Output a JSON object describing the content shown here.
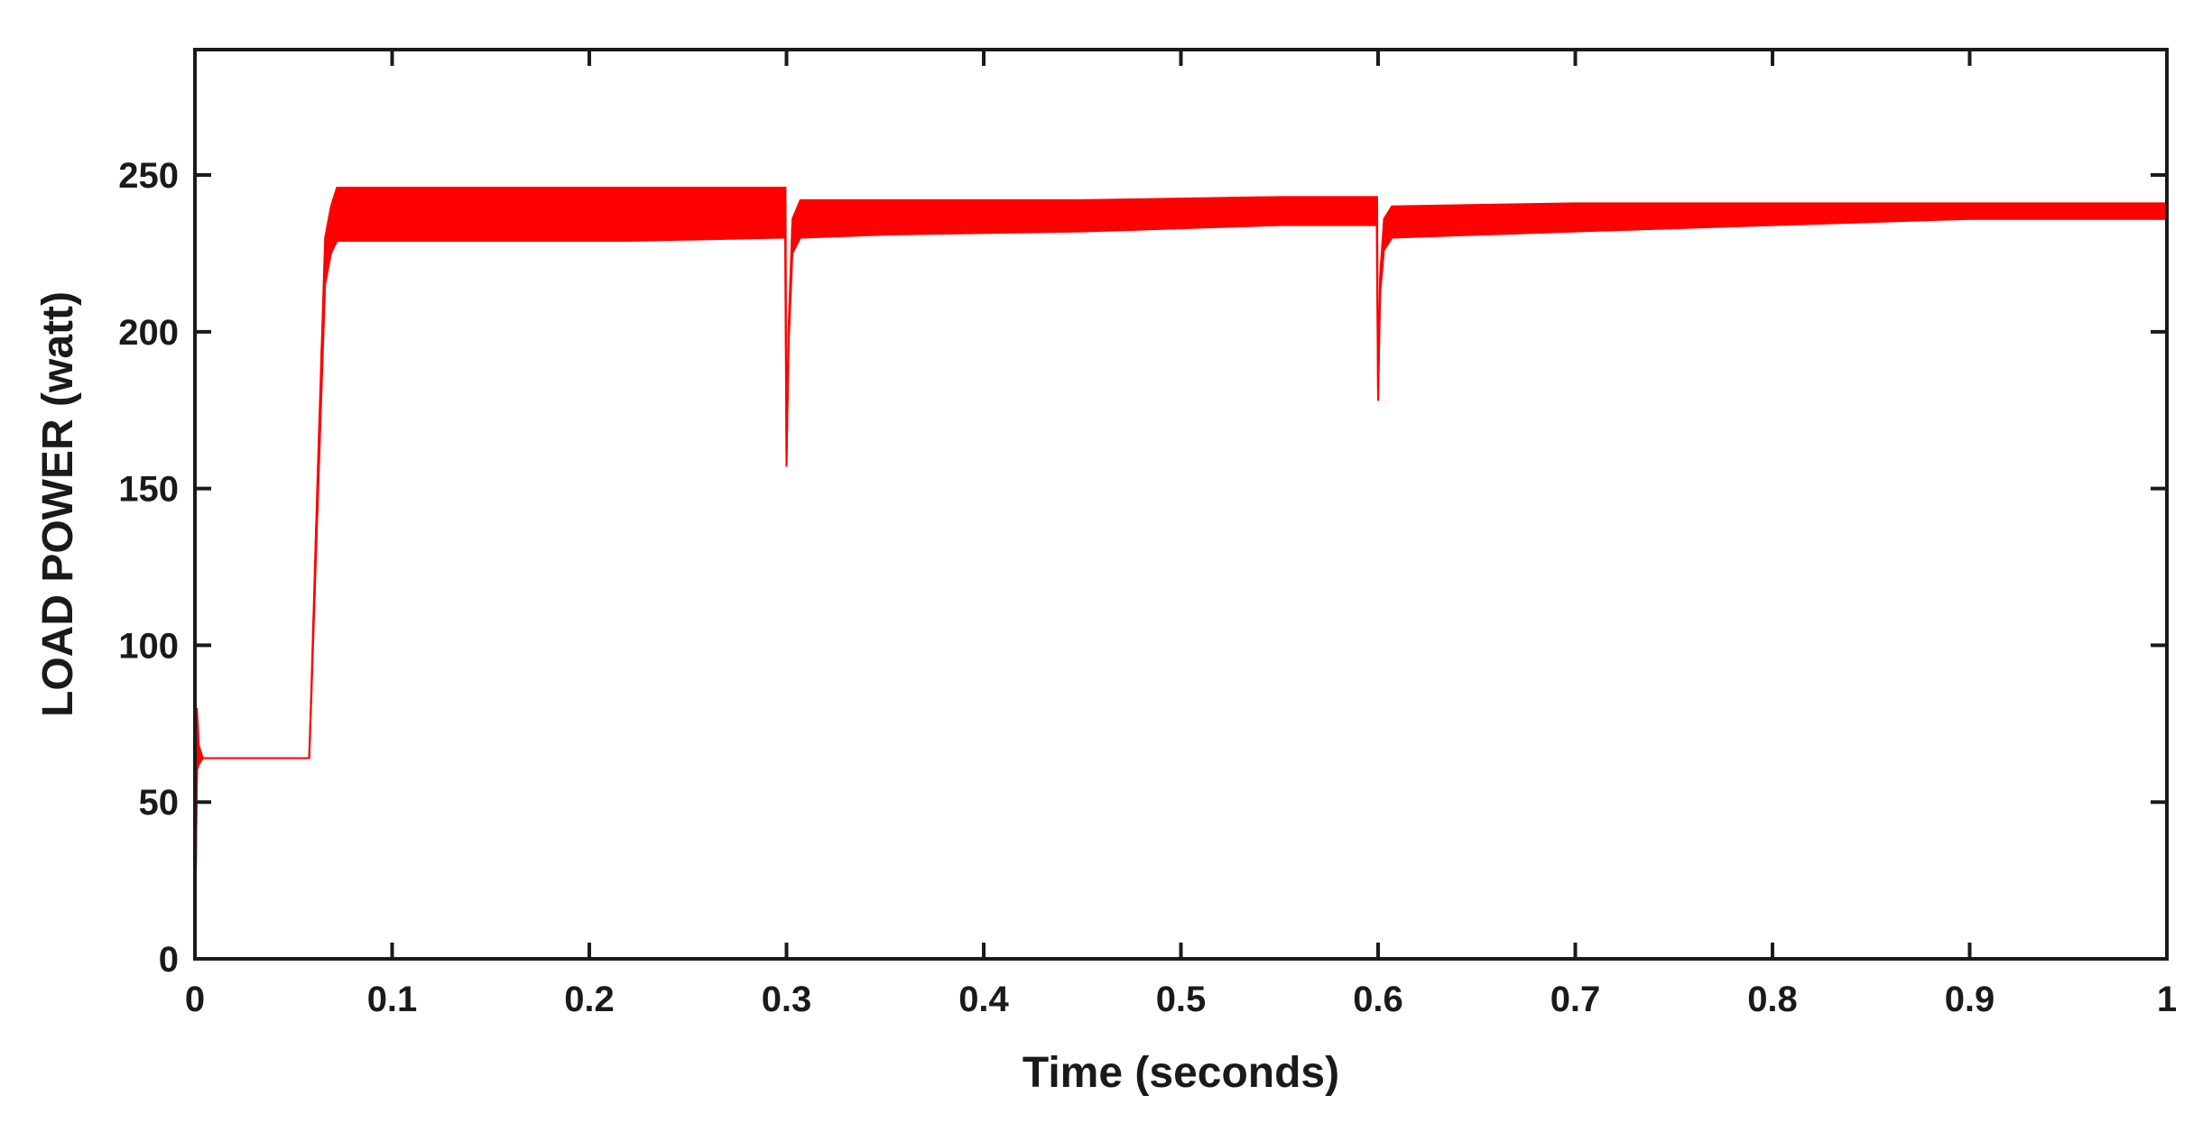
{
  "chart_data": {
    "type": "line",
    "title": "",
    "xlabel": "Time (seconds)",
    "ylabel": "LOAD POWER (watt)",
    "xlim": [
      0,
      1
    ],
    "ylim": [
      0,
      290
    ],
    "xticks": [
      0,
      0.1,
      0.2,
      0.3,
      0.4,
      0.5,
      0.6,
      0.7,
      0.8,
      0.9,
      1
    ],
    "xtick_labels": [
      "0",
      "0.1",
      "0.2",
      "0.3",
      "0.4",
      "0.5",
      "0.6",
      "0.7",
      "0.8",
      "0.9",
      "1"
    ],
    "yticks": [
      0,
      50,
      100,
      150,
      200,
      250
    ],
    "ytick_labels": [
      "0",
      "50",
      "100",
      "150",
      "200",
      "250"
    ],
    "grid": false,
    "legend": "none",
    "series": [
      {
        "color": "#ff0000",
        "style": "oscillating band",
        "upper": {
          "x": [
            0.0,
            0.001,
            0.002,
            0.004,
            0.058,
            0.062,
            0.066,
            0.069,
            0.072,
            0.15,
            0.22,
            0.298,
            0.2995,
            0.3,
            0.301,
            0.303,
            0.307,
            0.35,
            0.45,
            0.55,
            0.5985,
            0.5995,
            0.6,
            0.601,
            0.603,
            0.607,
            0.7,
            0.8,
            0.9,
            1.0
          ],
          "y": [
            0,
            80,
            68,
            64,
            64,
            150,
            230,
            240,
            246,
            246,
            246,
            246,
            246,
            157,
            200,
            236,
            242,
            242,
            242,
            243,
            243,
            243,
            178,
            218,
            236,
            240,
            241,
            241,
            241,
            241
          ]
        },
        "lower": {
          "x": [
            0.0,
            0.001,
            0.002,
            0.004,
            0.058,
            0.062,
            0.066,
            0.069,
            0.072,
            0.15,
            0.22,
            0.298,
            0.2995,
            0.3,
            0.301,
            0.303,
            0.307,
            0.35,
            0.45,
            0.55,
            0.5985,
            0.5995,
            0.6,
            0.601,
            0.603,
            0.607,
            0.7,
            0.8,
            0.9,
            1.0
          ],
          "y": [
            0,
            60,
            62,
            64,
            64,
            140,
            215,
            225,
            229,
            229,
            229,
            230,
            230,
            157,
            195,
            225,
            230,
            231,
            232,
            234,
            234,
            234,
            178,
            212,
            226,
            230,
            232,
            234,
            236,
            236
          ]
        }
      }
    ]
  }
}
